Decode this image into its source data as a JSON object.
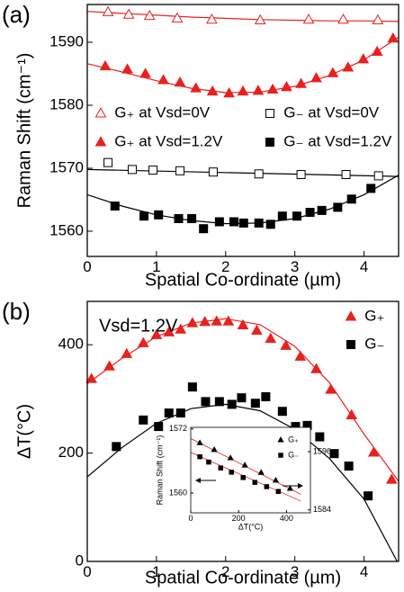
{
  "chart_data": [
    {
      "type": "scatter",
      "panel_label": "(a)",
      "xlabel": "Spatial Co-ordinate (µm)",
      "ylabel": "Raman Shift (cm⁻¹)",
      "xlim": [
        0,
        4.5
      ],
      "ylim": [
        1556,
        1596
      ],
      "xticks": [
        0,
        1,
        2,
        3,
        4
      ],
      "yticks": [
        1560,
        1570,
        1580,
        1590
      ],
      "series": [
        {
          "name": "G₊ at Vsd=0V",
          "color": "#e8211f",
          "marker": "triangle",
          "filled": false,
          "x": [
            0.3,
            0.6,
            0.9,
            1.3,
            1.8,
            2.5,
            3.2,
            3.7,
            4.2
          ],
          "values": [
            1594.8,
            1594.4,
            1594.2,
            1593.8,
            1593.6,
            1593.5,
            1593.6,
            1593.6,
            1593.5
          ]
        },
        {
          "name": "G₋ at Vsd=0V",
          "color": "#000000",
          "marker": "square",
          "filled": false,
          "x": [
            0.3,
            0.65,
            0.95,
            1.34,
            1.82,
            2.48,
            3.09,
            3.74,
            4.21
          ],
          "values": [
            1570.9,
            1569.8,
            1569.7,
            1569.6,
            1569.4,
            1569.1,
            1569.0,
            1569.0,
            1568.8
          ]
        },
        {
          "name": "G₊ at Vsd=1.2V",
          "color": "#e8211f",
          "marker": "triangle",
          "filled": true,
          "x": [
            0.26,
            0.58,
            0.84,
            1.1,
            1.34,
            1.57,
            1.81,
            2.05,
            2.25,
            2.47,
            2.68,
            2.88,
            3.09,
            3.31,
            3.55,
            3.77,
            3.99,
            4.19,
            4.42
          ],
          "values": [
            1586.2,
            1585.7,
            1585.0,
            1584.0,
            1583.6,
            1582.7,
            1582.2,
            1581.9,
            1582.2,
            1582.3,
            1582.5,
            1582.9,
            1583.4,
            1584.3,
            1585.1,
            1586.0,
            1587.3,
            1588.5,
            1590.6
          ]
        },
        {
          "name": "G₋ at Vsd=1.2V",
          "color": "#000000",
          "marker": "square",
          "filled": true,
          "x": [
            0.4,
            0.82,
            1.03,
            1.32,
            1.51,
            1.68,
            1.91,
            2.12,
            2.26,
            2.48,
            2.65,
            2.82,
            3.03,
            3.22,
            3.39,
            3.62,
            3.82,
            4.1
          ],
          "values": [
            1564.0,
            1562.4,
            1562.6,
            1562.0,
            1562.0,
            1560.4,
            1561.5,
            1561.5,
            1561.3,
            1561.3,
            1561.1,
            1562.4,
            1562.4,
            1563.0,
            1563.3,
            1563.8,
            1565.1,
            1566.8
          ]
        }
      ],
      "fits": [
        {
          "color": "#e8211f",
          "x": [
            0,
            0.5,
            1,
            1.5,
            2,
            2.5,
            3,
            3.5,
            4,
            4.5
          ],
          "values": [
            1594.9,
            1594.6,
            1594.3,
            1594.0,
            1593.8,
            1593.6,
            1593.5,
            1593.4,
            1593.4,
            1593.3
          ]
        },
        {
          "color": "#e8211f",
          "x": [
            0,
            0.5,
            1,
            1.5,
            2,
            2.5,
            3,
            3.5,
            4,
            4.5
          ],
          "values": [
            1586.6,
            1585.3,
            1583.9,
            1582.7,
            1582.0,
            1582.1,
            1583.0,
            1584.7,
            1587.2,
            1590.8
          ]
        },
        {
          "color": "#000000",
          "x": [
            0,
            4.5
          ],
          "values": [
            1569.8,
            1568.7
          ]
        },
        {
          "color": "#000000",
          "x": [
            0,
            0.5,
            1,
            1.5,
            2,
            2.5,
            3,
            3.5,
            4,
            4.5
          ],
          "values": [
            1565.8,
            1564.0,
            1562.6,
            1561.7,
            1561.2,
            1561.3,
            1562.0,
            1563.5,
            1565.8,
            1568.9
          ]
        }
      ]
    },
    {
      "type": "scatter",
      "panel_label": "(b)",
      "xlabel": "Spatial Co-ordinate (µm)",
      "ylabel": "ΔT(°C)",
      "annotation": "Vsd=1.2V",
      "xlim": [
        0,
        4.5
      ],
      "ylim": [
        0,
        480
      ],
      "xticks": [
        0,
        1,
        2,
        3,
        4
      ],
      "yticks": [
        0,
        200,
        400
      ],
      "series": [
        {
          "name": "G₊",
          "color": "#e8211f",
          "marker": "triangle",
          "filled": true,
          "x": [
            0.06,
            0.32,
            0.57,
            0.81,
            1.0,
            1.18,
            1.35,
            1.52,
            1.7,
            1.87,
            2.04,
            2.25,
            2.45,
            2.65,
            2.87,
            3.08,
            3.31,
            3.52,
            3.82,
            4.14,
            4.4
          ],
          "values": [
            337,
            360,
            383,
            403,
            418,
            423,
            428,
            440,
            442,
            443,
            443,
            436,
            426,
            411,
            398,
            378,
            355,
            317,
            270,
            201,
            151
          ]
        },
        {
          "name": "G₋",
          "color": "#000000",
          "marker": "square",
          "filled": true,
          "x": [
            0.42,
            0.81,
            1.03,
            1.18,
            1.35,
            1.52,
            1.71,
            1.91,
            2.09,
            2.23,
            2.43,
            2.58,
            2.82,
            3.01,
            3.18,
            3.36,
            3.57,
            3.78,
            4.06
          ],
          "values": [
            212,
            261,
            249,
            274,
            274,
            322,
            295,
            295,
            290,
            302,
            292,
            304,
            277,
            249,
            251,
            230,
            199,
            176,
            121
          ]
        }
      ],
      "fits": [
        {
          "color": "#e8211f",
          "x": [
            0,
            0.5,
            1,
            1.5,
            2,
            2.5,
            3,
            3.5,
            4,
            4.5
          ],
          "values": [
            328,
            375,
            415,
            440,
            448,
            437,
            397,
            330,
            235,
            148
          ]
        },
        {
          "color": "#000000",
          "x": [
            0,
            0.5,
            1,
            1.5,
            2,
            2.5,
            3,
            3.5,
            4,
            4.5
          ],
          "values": [
            156,
            210,
            255,
            282,
            290,
            278,
            244,
            190,
            115,
            -5
          ]
        }
      ]
    },
    {
      "type": "scatter",
      "xlabel": "ΔT(°C)",
      "ylabel": "Raman Shift (cm⁻¹)",
      "xlim": [
        0,
        500
      ],
      "ylim": [
        1556.3,
        1572.3
      ],
      "y2lim": [
        1583.4,
        1601
      ],
      "xticks": [
        0,
        200,
        400
      ],
      "yticks": [
        1560,
        1572
      ],
      "y2ticks": [
        1584,
        1596
      ],
      "series": [
        {
          "name": "G₊",
          "color": "#000000",
          "marker": "triangle",
          "filled": true,
          "axis": "y2",
          "x": [
            38,
            98,
            166,
            226,
            294,
            355,
            415
          ],
          "values": [
            1597.8,
            1596.4,
            1594.7,
            1593.2,
            1591.7,
            1590.1,
            1588.4
          ]
        },
        {
          "name": "G₋",
          "color": "#000000",
          "marker": "square",
          "filled": true,
          "x": [
            38,
            75,
            125,
            170,
            219,
            268,
            317,
            366
          ],
          "values": [
            1566.8,
            1565.8,
            1564.7,
            1563.9,
            1562.9,
            1562.0,
            1561.2,
            1560.3
          ]
        }
      ],
      "fits": [
        {
          "color": "#e8211f",
          "axis": "y2",
          "x": [
            0,
            460
          ],
          "values": [
            1598.7,
            1587.2
          ]
        },
        {
          "color": "#e8211f",
          "x": [
            0,
            460
          ],
          "values": [
            1567.6,
            1558.5
          ]
        }
      ]
    }
  ]
}
